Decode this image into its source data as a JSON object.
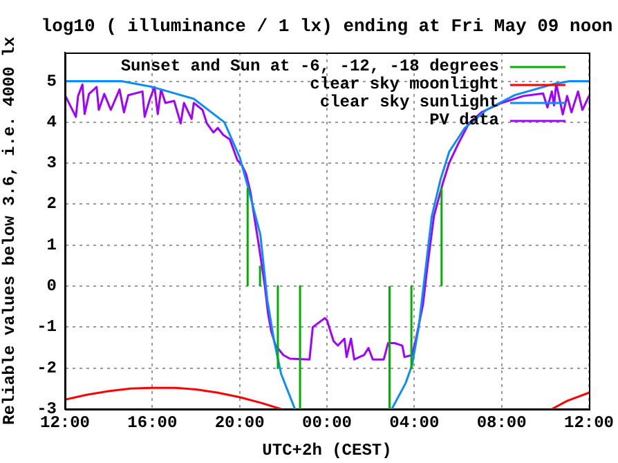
{
  "chart_data": {
    "type": "line",
    "title": "log10 ( illuminance / 1 lx) ending at Fri May 09 noon",
    "xlabel": "UTC+2h (CEST)",
    "ylabel": "Reliable values below 3.6, i.e. 4000 lx",
    "xlim": [
      "--05-08T12:00",
      "--05-09T12:00"
    ],
    "xticks": [
      {
        "value": "--05-08T12:00",
        "label": "12:00"
      },
      {
        "value": "--05-08T16:00",
        "label": "16:00"
      },
      {
        "value": "--05-08T20:00",
        "label": "20:00"
      },
      {
        "value": "--05-09T00:00",
        "label": "00:00"
      },
      {
        "value": "--05-09T04:00",
        "label": "04:00"
      },
      {
        "value": "--05-09T08:00",
        "label": "08:00"
      },
      {
        "value": "--05-09T12:00",
        "label": "12:00"
      }
    ],
    "ylim": [
      -3,
      5.7
    ],
    "yticks": [
      -3,
      -2,
      -1,
      0,
      1,
      2,
      3,
      4,
      5
    ],
    "grid": true,
    "legend": "top right",
    "series": [
      {
        "name": "Sunset and Sun at -6, -12, -18 degrees",
        "color": "#00b000",
        "x": [
          "--05-08T20:22",
          "--05-08T20:22",
          null,
          "--05-08T20:56",
          "--05-08T20:56",
          null,
          "--05-08T21:45",
          "--05-08T21:45",
          null,
          "--05-08T22:46",
          "--05-08T22:46",
          null,
          "--05-09T02:52",
          "--05-09T02:52",
          null,
          "--05-09T03:52",
          "--05-09T03:52",
          null,
          "--05-09T05:15",
          "--05-09T05:15"
        ],
        "values": [
          0,
          2.4,
          null,
          0,
          0.5,
          null,
          0,
          -2,
          null,
          0,
          -3,
          null,
          -3,
          0,
          null,
          0,
          -2,
          null,
          0,
          2.4
        ]
      },
      {
        "name": "clear sky moonlight",
        "color": "#ff0000",
        "x": [
          "--05-08T12:00",
          "--05-08T13:00",
          "--05-08T14:00",
          "--05-08T15:00",
          "--05-08T16:00",
          "--05-08T17:00",
          "--05-08T18:00",
          "--05-08T19:00",
          "--05-08T20:00",
          "--05-08T21:00",
          "--05-08T21:54",
          null,
          "--05-09T10:18",
          "--05-09T11:00",
          "--05-09T12:00"
        ],
        "values": [
          -2.77,
          -2.65,
          -2.56,
          -2.5,
          -2.48,
          -2.48,
          -2.52,
          -2.6,
          -2.71,
          -2.85,
          -3,
          null,
          -3,
          -2.8,
          -2.6
        ]
      },
      {
        "name": "clear sky sunlight",
        "color": "#0a8cff",
        "x": [
          "--05-08T12:00",
          "--05-08T14:36",
          "--05-08T16:00",
          "--05-08T17:54",
          "--05-08T19:18",
          "--05-08T20:00",
          "--05-08T20:24",
          "--05-08T20:57",
          "--05-08T21:16",
          "--05-08T21:35",
          "--05-08T21:54",
          "--05-08T22:32",
          null,
          "--05-09T02:58",
          "--05-09T03:36",
          "--05-09T03:54",
          "--05-09T04:12",
          "--05-09T04:30",
          "--05-09T04:48",
          "--05-09T05:12",
          "--05-09T05:36",
          "--05-09T06:18",
          "--05-09T07:18",
          "--05-09T08:36",
          "--05-09T10:18",
          "--05-09T11:06",
          "--05-09T12:00"
        ],
        "values": [
          5,
          5,
          4.86,
          4.57,
          4,
          3.15,
          2.38,
          1.25,
          -0.33,
          -1.35,
          -2.14,
          -3,
          null,
          -3,
          -2.37,
          -1.92,
          -1.01,
          0.34,
          1.7,
          2.6,
          3.28,
          3.85,
          4.3,
          4.66,
          4.92,
          5,
          5
        ]
      },
      {
        "name": "PV data",
        "color": "#a000ff",
        "x": [
          "--05-08T12:00",
          "--05-08T12:30",
          "--05-08T12:36",
          "--05-08T12:48",
          "--05-08T12:54",
          "--05-08T13:06",
          "--05-08T13:27",
          "--05-08T13:33",
          "--05-08T13:48",
          "--05-08T14:06",
          "--05-08T14:30",
          "--05-08T14:42",
          "--05-08T14:54",
          "--05-08T15:33",
          "--05-08T15:39",
          "--05-08T15:54",
          "--05-08T16:06",
          "--05-08T16:15",
          "--05-08T16:24",
          "--05-08T16:36",
          "--05-08T17:00",
          "--05-08T17:18",
          "--05-08T17:27",
          "--05-08T17:48",
          "--05-08T17:54",
          "--05-08T18:18",
          "--05-08T18:30",
          "--05-08T18:48",
          "--05-08T19:00",
          "--05-08T19:15",
          "--05-08T19:33",
          "--05-08T19:54",
          "--05-08T20:06",
          "--05-08T20:18",
          "--05-08T20:30",
          "--05-08T20:42",
          "--05-08T20:54",
          "--05-08T21:09",
          "--05-08T21:18",
          "--05-08T21:27",
          "--05-08T21:39",
          "--05-08T22:00",
          "--05-08T22:18",
          "--05-08T23:12",
          "--05-08T23:21",
          "--05-08T23:54",
          "--05-09T00:00",
          "--05-09T00:18",
          "--05-09T00:30",
          "--05-09T00:48",
          "--05-09T00:54",
          "--05-09T01:06",
          "--05-09T01:15",
          "--05-09T01:42",
          "--05-09T01:54",
          "--05-09T02:06",
          "--05-09T02:36",
          "--05-09T02:48",
          "--05-09T03:06",
          "--05-09T03:27",
          "--05-09T03:33",
          "--05-09T03:54",
          "--05-09T04:06",
          "--05-09T04:24",
          "--05-09T04:36",
          "--05-09T04:54",
          "--05-09T05:18",
          "--05-09T05:36",
          "--05-09T06:00",
          "--05-09T06:30",
          "--05-09T07:06",
          "--05-09T08:00",
          "--05-09T09:00",
          "--05-09T09:54",
          "--05-09T10:06",
          "--05-09T10:18",
          "--05-09T10:24",
          "--05-09T10:30",
          "--05-09T10:48",
          "--05-09T11:00",
          "--05-09T11:12",
          "--05-09T11:30",
          "--05-09T11:42",
          "--05-09T12:00"
        ],
        "values": [
          4.66,
          4.13,
          4.64,
          4.92,
          4.2,
          4.69,
          4.86,
          4.3,
          4.69,
          4.3,
          4.8,
          4.24,
          4.66,
          4.75,
          4.13,
          4.58,
          4.86,
          4.2,
          4.8,
          4.47,
          4.52,
          3.97,
          4.47,
          4.08,
          4.47,
          4.3,
          3.97,
          3.75,
          3.86,
          3.69,
          3.58,
          3.07,
          2.96,
          2.73,
          2.28,
          1.6,
          0.92,
          0.02,
          -0.66,
          -1.11,
          -1.45,
          -1.68,
          -1.77,
          -1.79,
          -1,
          -0.78,
          -0.83,
          -1.34,
          -1.45,
          -1.28,
          -1.73,
          -1.28,
          -1.79,
          -1.68,
          -1.51,
          -1.79,
          -1.79,
          -1.39,
          -1.39,
          -1.45,
          -1.73,
          -1.68,
          -1.23,
          -0.44,
          0.47,
          1.71,
          2.5,
          3.01,
          3.46,
          3.97,
          4.25,
          4.47,
          4.64,
          4.7,
          4.36,
          4.75,
          4.41,
          4.95,
          4.19,
          4.64,
          4.24,
          4.75,
          4.3,
          4.64
        ]
      }
    ]
  }
}
